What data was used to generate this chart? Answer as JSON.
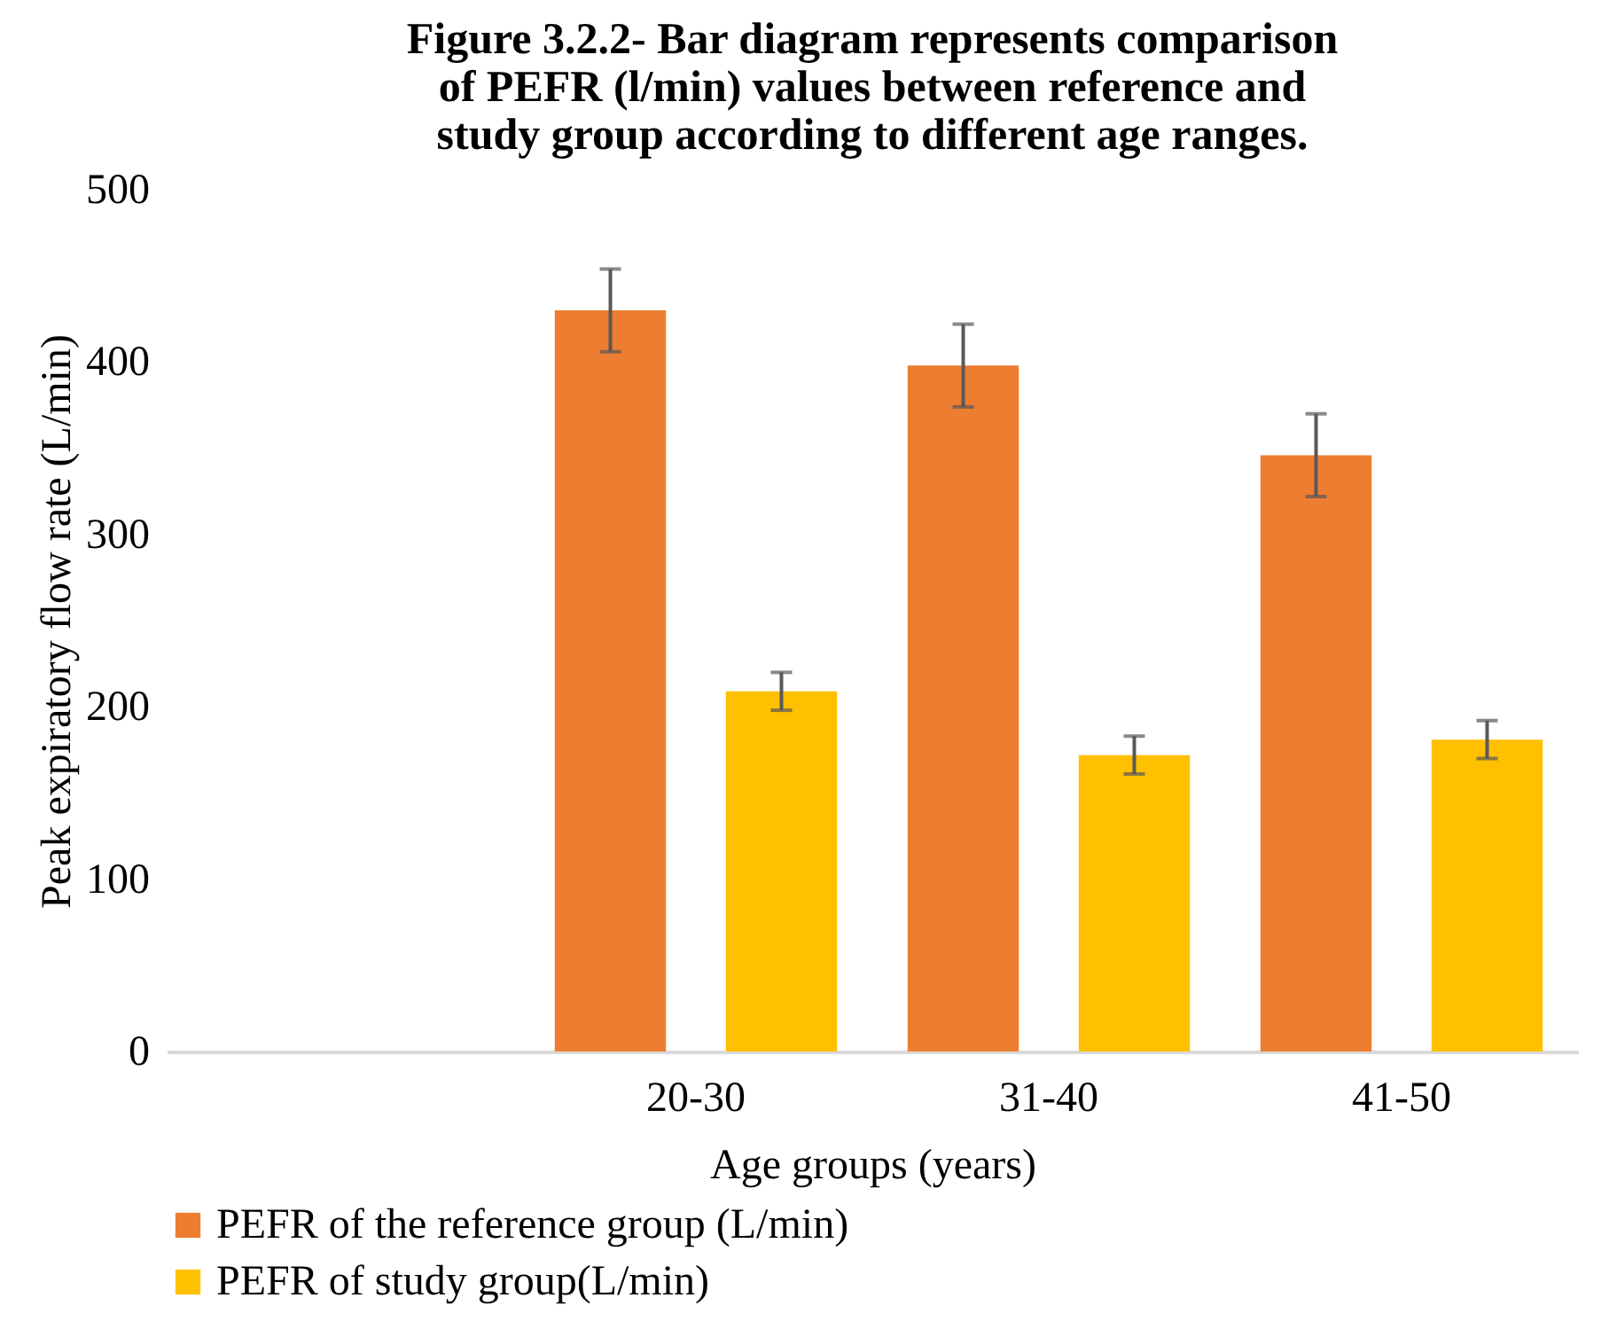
{
  "chart_data": {
    "type": "bar",
    "title": "Figure 3.2.2- Bar diagram represents comparison of PEFR (l/min) values between reference and study group according to different age ranges.",
    "xlabel": "Age groups (years)",
    "ylabel": "Peak expiratory flow rate (L/min)",
    "categories": [
      null,
      "20-30",
      "31-40",
      "41-50"
    ],
    "series": [
      {
        "name": "PEFR of the reference group (L/min)",
        "color": "#ed7d31",
        "values": [
          null,
          430,
          398,
          346
        ],
        "errors": [
          null,
          24,
          24,
          24
        ]
      },
      {
        "name": "PEFR of study group(L/min)",
        "color": "#ffc000",
        "values": [
          null,
          209,
          172,
          181
        ],
        "errors": [
          null,
          11,
          11,
          11
        ]
      }
    ],
    "ylim": [
      0,
      500
    ],
    "yticks": [
      0,
      100,
      200,
      300,
      400,
      500
    ],
    "grid": false,
    "legend": "bottom"
  }
}
